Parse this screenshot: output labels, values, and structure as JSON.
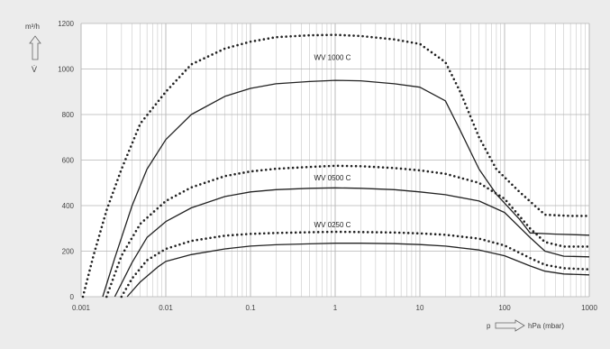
{
  "chart_data": {
    "type": "line",
    "x_scale": "log",
    "xlim": [
      0.001,
      1000
    ],
    "ylim": [
      0,
      1200
    ],
    "grid": true,
    "xlabel": "hPa (mbar)",
    "xlabel_symbol": "p",
    "ylabel_unit": "m³/h",
    "ylabel_symbol": "V̇",
    "x_ticks": [
      0.001,
      0.01,
      0.1,
      1,
      10,
      100,
      1000
    ],
    "x_tick_labels": [
      "0.001",
      "0.01",
      "0.1",
      "1",
      "10",
      "100",
      "1000"
    ],
    "y_ticks": [
      0,
      200,
      400,
      600,
      800,
      1000,
      1200
    ],
    "y_tick_labels": [
      "0",
      "200",
      "400",
      "600",
      "800",
      "1000",
      "1200"
    ],
    "annotations": [
      {
        "text": "WV 1000 C",
        "x": 1,
        "y": 1040
      },
      {
        "text": "WV 0500 C",
        "x": 1,
        "y": 510
      },
      {
        "text": "WV 0250 C",
        "x": 1,
        "y": 305
      }
    ],
    "series": [
      {
        "style": "dotted",
        "x": [
          0.00105,
          0.0014,
          0.002,
          0.003,
          0.005,
          0.01,
          0.02,
          0.05,
          0.1,
          0.2,
          0.5,
          1,
          2,
          5,
          10,
          20,
          30,
          50,
          80,
          150,
          300,
          600,
          1000
        ],
        "y": [
          0,
          180,
          380,
          560,
          760,
          900,
          1020,
          1090,
          1120,
          1140,
          1148,
          1150,
          1145,
          1130,
          1110,
          1030,
          900,
          700,
          560,
          460,
          360,
          355,
          355
        ]
      },
      {
        "style": "solid",
        "x": [
          0.0018,
          0.0025,
          0.004,
          0.006,
          0.01,
          0.02,
          0.05,
          0.1,
          0.2,
          0.5,
          1,
          2,
          5,
          10,
          20,
          30,
          50,
          80,
          150,
          200,
          400,
          700,
          1000
        ],
        "y": [
          0,
          170,
          400,
          560,
          690,
          800,
          880,
          915,
          935,
          945,
          950,
          948,
          935,
          920,
          860,
          730,
          560,
          450,
          340,
          280,
          275,
          272,
          270
        ]
      },
      {
        "style": "dotted",
        "x": [
          0.002,
          0.003,
          0.005,
          0.01,
          0.02,
          0.05,
          0.1,
          0.2,
          0.5,
          1,
          2,
          5,
          10,
          20,
          50,
          100,
          200,
          300,
          500,
          1000
        ],
        "y": [
          0,
          180,
          320,
          420,
          480,
          530,
          550,
          562,
          570,
          575,
          573,
          565,
          555,
          540,
          500,
          430,
          300,
          240,
          220,
          220
        ]
      },
      {
        "style": "solid",
        "x": [
          0.0025,
          0.004,
          0.006,
          0.01,
          0.02,
          0.05,
          0.1,
          0.2,
          0.5,
          1,
          2,
          5,
          10,
          20,
          50,
          100,
          200,
          300,
          500,
          1000
        ],
        "y": [
          0,
          150,
          260,
          330,
          390,
          440,
          460,
          470,
          476,
          478,
          476,
          470,
          460,
          448,
          420,
          370,
          260,
          200,
          178,
          175
        ]
      },
      {
        "style": "dotted",
        "x": [
          0.003,
          0.004,
          0.006,
          0.01,
          0.02,
          0.05,
          0.1,
          0.2,
          0.5,
          1,
          2,
          5,
          10,
          20,
          50,
          100,
          200,
          300,
          500,
          1000
        ],
        "y": [
          0,
          80,
          160,
          210,
          245,
          268,
          276,
          280,
          283,
          285,
          284,
          282,
          278,
          272,
          255,
          225,
          170,
          140,
          125,
          120
        ]
      },
      {
        "style": "solid",
        "x": [
          0.0035,
          0.005,
          0.008,
          0.01,
          0.02,
          0.05,
          0.1,
          0.2,
          0.5,
          1,
          2,
          5,
          10,
          20,
          50,
          100,
          200,
          300,
          500,
          1000
        ],
        "y": [
          0,
          65,
          130,
          155,
          185,
          210,
          222,
          228,
          232,
          235,
          235,
          233,
          229,
          222,
          205,
          180,
          135,
          112,
          100,
          96
        ]
      }
    ]
  }
}
